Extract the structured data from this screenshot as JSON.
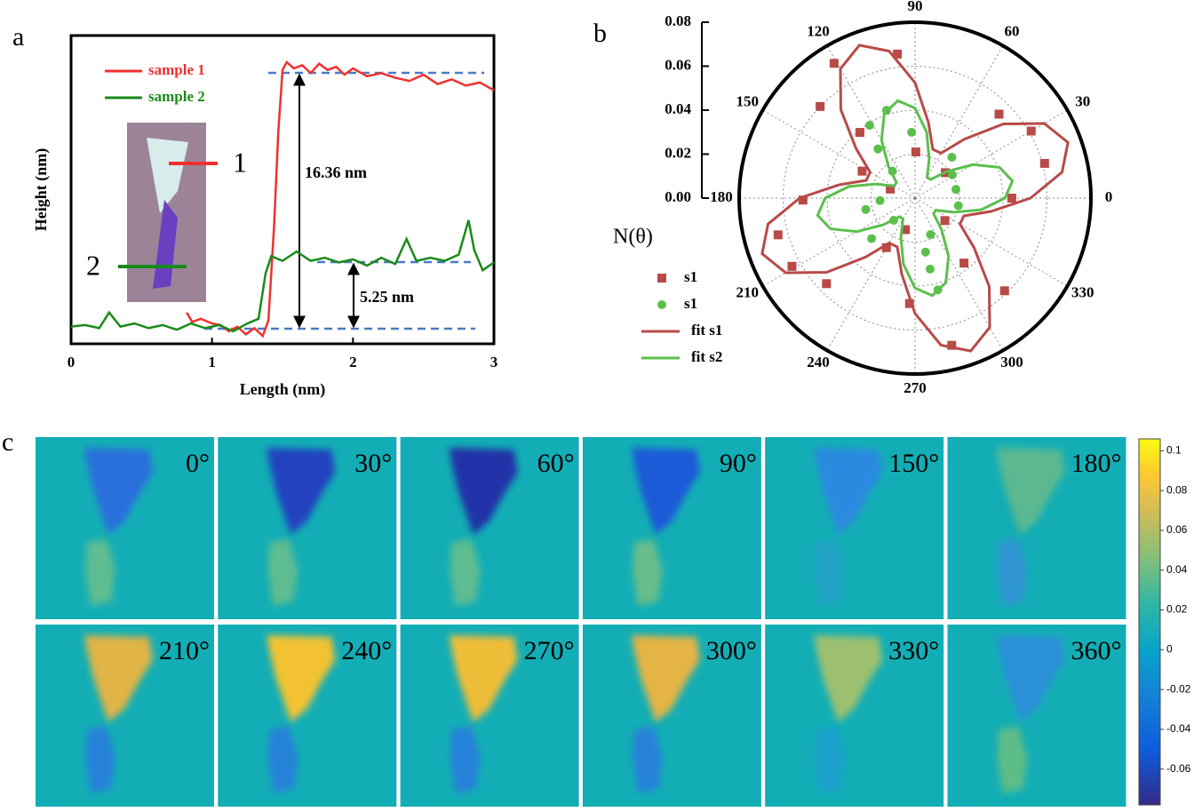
{
  "chart_data": [
    {
      "panel": "a",
      "type": "line",
      "x_label": "Length (nm)",
      "y_label": "Height (nm)",
      "xlim": [
        0,
        3
      ],
      "xticks": [
        0,
        1,
        2,
        3
      ],
      "ylim": [
        -1,
        18.7
      ],
      "series": [
        {
          "name": "sample 1",
          "color": "#f03030",
          "x": [
            0.82,
            0.86,
            0.92,
            1.0,
            1.06,
            1.12,
            1.18,
            1.24,
            1.3,
            1.36,
            1.4,
            1.44,
            1.47,
            1.5,
            1.53,
            1.58,
            1.64,
            1.7,
            1.76,
            1.82,
            1.88,
            1.94,
            2.0,
            2.1,
            2.2,
            2.3,
            2.4,
            2.5,
            2.6,
            2.7,
            2.8,
            2.9,
            3.0
          ],
          "values": [
            1.0,
            0.4,
            0.6,
            0.3,
            0.2,
            -0.2,
            0.1,
            -0.4,
            0.0,
            -0.5,
            0.5,
            6.5,
            12.5,
            16.5,
            17.0,
            16.6,
            16.8,
            16.3,
            16.9,
            16.5,
            16.7,
            16.2,
            16.6,
            16.1,
            16.3,
            16.0,
            15.8,
            16.2,
            15.6,
            15.9,
            15.5,
            15.7,
            15.2
          ]
        },
        {
          "name": "sample 2",
          "color": "#1a8a1a",
          "x": [
            0,
            0.1,
            0.2,
            0.27,
            0.35,
            0.45,
            0.55,
            0.65,
            0.75,
            0.85,
            0.95,
            1.05,
            1.15,
            1.25,
            1.33,
            1.38,
            1.42,
            1.5,
            1.6,
            1.7,
            1.8,
            1.9,
            2.0,
            2.1,
            2.2,
            2.3,
            2.38,
            2.45,
            2.55,
            2.65,
            2.75,
            2.82,
            2.86,
            2.92,
            3.0
          ],
          "values": [
            0.1,
            0.2,
            0.0,
            1.0,
            0.1,
            0.3,
            0.0,
            0.2,
            -0.1,
            0.3,
            0.0,
            0.2,
            -0.2,
            0.3,
            0.6,
            3.5,
            4.6,
            4.3,
            4.9,
            4.3,
            4.5,
            4.2,
            4.4,
            4.0,
            4.5,
            4.1,
            5.7,
            4.3,
            4.5,
            4.3,
            4.7,
            6.9,
            5.0,
            3.7,
            4.2
          ]
        }
      ],
      "annotations": [
        "16.36 nm",
        "5.25 nm"
      ],
      "inset_labels": [
        "1",
        "2"
      ]
    },
    {
      "panel": "b",
      "type": "polar",
      "r_label": "N(θ)",
      "rlim": [
        0,
        0.08
      ],
      "rticks": [
        {
          "value": 0,
          "label": "0.00"
        },
        {
          "value": 0.02,
          "label": "0.02"
        },
        {
          "value": 0.04,
          "label": "0.04"
        },
        {
          "value": 0.06,
          "label": "0.06"
        },
        {
          "value": 0.08,
          "label": "0.08"
        }
      ],
      "thetaticks": [
        0,
        30,
        60,
        90,
        120,
        150,
        180,
        210,
        240,
        270,
        300,
        330
      ],
      "series": [
        {
          "name": "s1",
          "color": "#b84a48",
          "marker": "square",
          "theta": [
            97,
            121,
            136,
            45,
            30,
            15,
            0,
            181,
            195,
            209,
            224,
            267,
            284,
            314,
            130,
            153,
            160,
            89,
            40,
            323,
            253,
            240,
            307
          ],
          "values": [
            0.066,
            0.0715,
            0.06,
            0.054,
            0.061,
            0.061,
            0.044,
            0.051,
            0.0645,
            0.064,
            0.056,
            0.048,
            0.069,
            0.0586,
            0.039,
            0.027,
            0.012,
            0.021,
            0.018,
            0.017,
            0.015,
            0.026,
            0.037
          ]
        },
        {
          "name": "s1",
          "color": "#5cbf4c",
          "marker": "circle",
          "theta": [
            108,
            122,
            93,
            127,
            48,
            32,
            12,
            350,
            293,
            284,
            282,
            281,
            193,
            223,
            184,
            130,
            226
          ],
          "values": [
            0.042,
            0.039,
            0.03,
            0.028,
            0.025,
            0.02,
            0.019,
            0.02,
            0.018,
            0.043,
            0.033,
            0.025,
            0.023,
            0.027,
            0.016,
            0.016,
            0.014
          ]
        },
        {
          "name": "fit s1",
          "color": "#b84a48",
          "marker": "line",
          "theta": [
            0,
            10,
            20,
            30,
            40,
            50,
            60,
            70,
            80,
            90,
            100,
            110,
            120,
            130,
            140,
            150,
            160,
            170,
            180,
            190,
            200,
            210,
            220,
            230,
            240,
            250,
            260,
            270,
            280,
            290,
            300,
            310,
            320,
            330,
            340,
            350
          ],
          "values": [
            0.0525,
            0.0679,
            0.074,
            0.0679,
            0.0525,
            0.035,
            0.0236,
            0.0236,
            0.035,
            0.0525,
            0.0679,
            0.074,
            0.0679,
            0.0525,
            0.035,
            0.0236,
            0.0236,
            0.035,
            0.0525,
            0.0679,
            0.074,
            0.0679,
            0.0525,
            0.035,
            0.0236,
            0.0236,
            0.035,
            0.0525,
            0.0679,
            0.074,
            0.0679,
            0.0525,
            0.035,
            0.0236,
            0.0236,
            0.035
          ]
        },
        {
          "name": "fit s2",
          "color": "#5cbf4c",
          "marker": "line",
          "theta": [
            0,
            10,
            20,
            30,
            40,
            50,
            60,
            70,
            80,
            90,
            100,
            110,
            120,
            130,
            140,
            150,
            160,
            170,
            180,
            190,
            200,
            210,
            220,
            230,
            240,
            250,
            260,
            270,
            280,
            290,
            300,
            310,
            320,
            330,
            340,
            350
          ],
          "values": [
            0.0409,
            0.045,
            0.0409,
            0.0305,
            0.0188,
            0.011,
            0.011,
            0.0188,
            0.0305,
            0.0409,
            0.045,
            0.0409,
            0.0305,
            0.0188,
            0.011,
            0.011,
            0.0188,
            0.0305,
            0.0409,
            0.045,
            0.0409,
            0.0305,
            0.0188,
            0.011,
            0.011,
            0.0188,
            0.0305,
            0.0409,
            0.045,
            0.0409,
            0.0305,
            0.0188,
            0.011,
            0.011,
            0.0188,
            0.0305
          ]
        }
      ]
    },
    {
      "panel": "c",
      "type": "heatmap",
      "panels": [
        "0°",
        "30°",
        "60°",
        "90°",
        "150°",
        "180°",
        "210°",
        "240°",
        "270°",
        "300°",
        "330°",
        "360°"
      ],
      "zlim": [
        -0.078,
        0.106
      ],
      "zticks": [
        -0.06,
        -0.04,
        -0.02,
        0,
        0.02,
        0.04,
        0.06,
        0.08,
        0.1
      ]
    }
  ]
}
